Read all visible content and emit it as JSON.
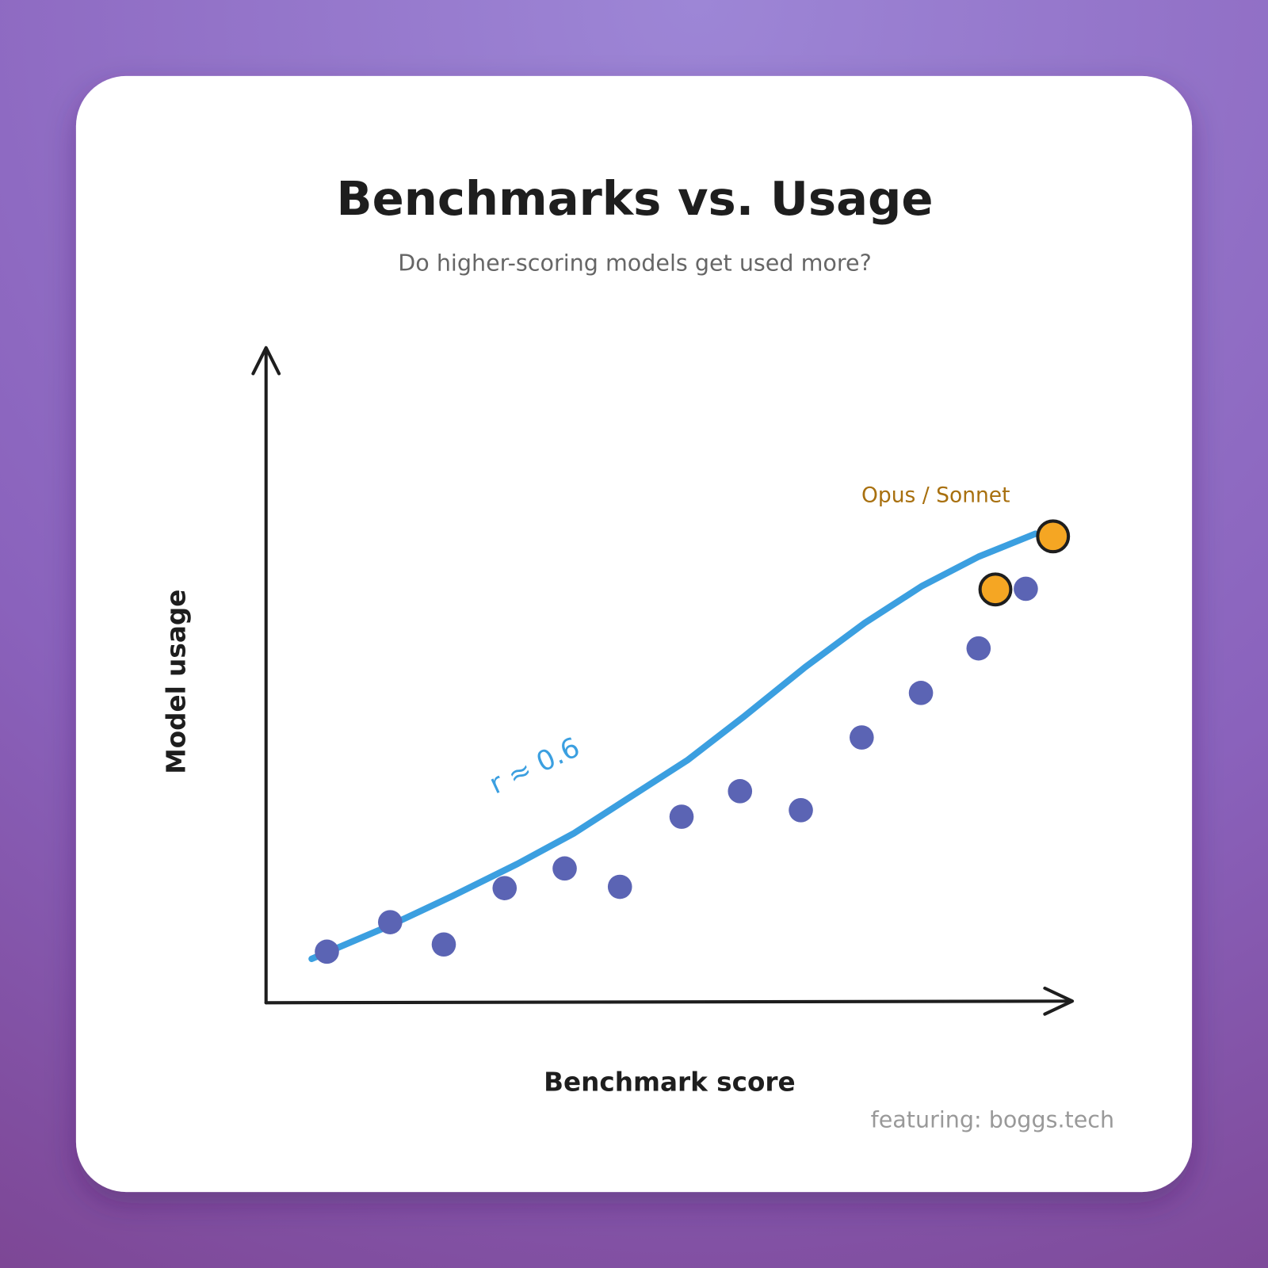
{
  "chart_data": {
    "type": "scatter",
    "title": "Benchmarks vs. Usage",
    "subtitle": "Do higher-scoring models get used more?",
    "x_label": "Benchmark score",
    "y_label": "Model usage",
    "footer": "featuring: boggs.tech",
    "xlim": [
      0,
      100
    ],
    "ylim": [
      0,
      100
    ],
    "series": [
      {
        "color": "#5b64b4",
        "x": [
          7.5,
          15.4,
          22.1,
          29.7,
          37.2,
          44.1,
          51.8,
          59.1,
          66.7,
          74.3,
          81.7,
          88.9,
          94.8
        ],
        "values": [
          7.8,
          12.3,
          8.9,
          17.5,
          20.5,
          17.7,
          28.4,
          32.3,
          29.4,
          40.5,
          47.3,
          54.1,
          63.2
        ]
      },
      {
        "name": "Opus / Sonnet",
        "color": "#f5a623",
        "x": [
          91.0,
          98.2
        ],
        "values": [
          63.1,
          71.2
        ]
      }
    ],
    "trend": {
      "label": "r ≈ 0.6",
      "color": "#3b9fe0",
      "x": [
        5.6,
        15.2,
        23.2,
        31.3,
        38.4,
        45.5,
        52.5,
        59.6,
        67.2,
        74.7,
        81.8,
        88.9,
        96.0
      ],
      "values": [
        6.7,
        11.7,
        16.3,
        21.2,
        25.9,
        31.5,
        37.0,
        43.7,
        51.2,
        58.0,
        63.6,
        68.1,
        71.6
      ]
    }
  }
}
